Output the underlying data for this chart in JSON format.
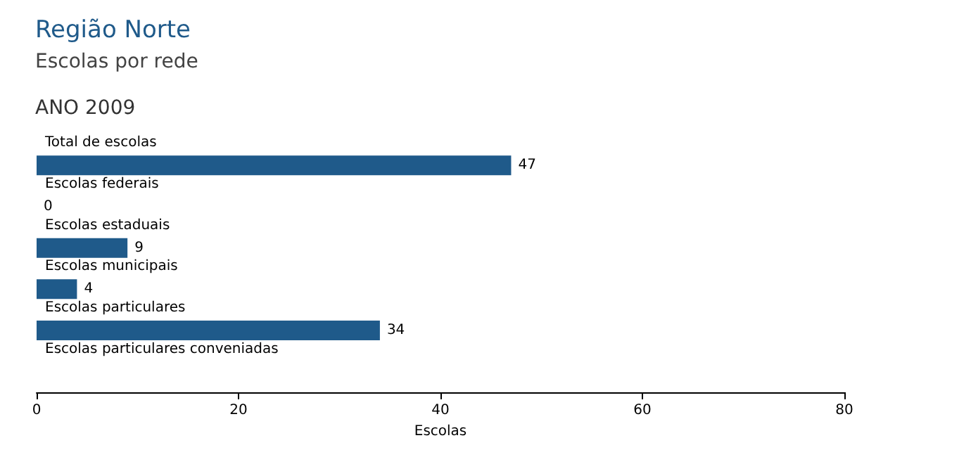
{
  "chart_data": {
    "type": "bar",
    "orientation": "horizontal",
    "title": "Região Norte",
    "subtitle": "Escolas por rede",
    "annotations": [
      "ANO 2009"
    ],
    "categories": [
      "Total de escolas",
      "Escolas federais",
      "Escolas estaduais",
      "Escolas municipais",
      "Escolas particulares",
      "Escolas particulares conveniadas"
    ],
    "values": [
      47,
      0,
      9,
      4,
      34,
      null
    ],
    "color": "#1f5a8a",
    "xlim": [
      0,
      80
    ],
    "xticks": [
      0,
      20,
      40,
      60,
      80
    ],
    "xlabel": "Escolas",
    "data_labels": true,
    "grid": false
  }
}
